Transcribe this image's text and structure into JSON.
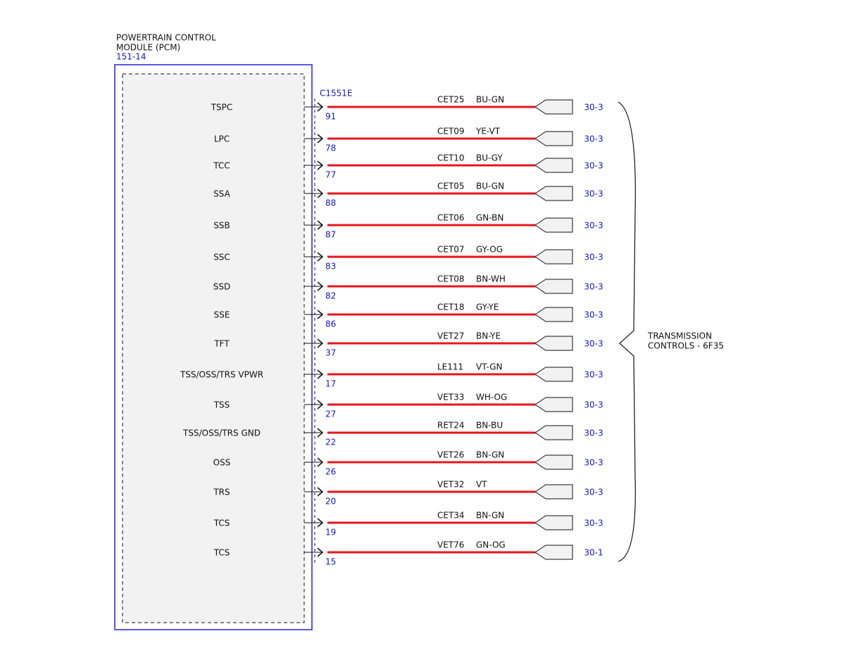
{
  "module": {
    "title_lines": [
      "POWERTRAIN CONTROL",
      "MODULE (PCM)"
    ],
    "ref": "151-14",
    "connector": "C1551E"
  },
  "rows": [
    {
      "signal": "TSPC",
      "pin": "91",
      "circuit": "CET25",
      "color": "BU-GN",
      "ref": "30-3"
    },
    {
      "signal": "LPC",
      "pin": "78",
      "circuit": "CET09",
      "color": "YE-VT",
      "ref": "30-3"
    },
    {
      "signal": "TCC",
      "pin": "77",
      "circuit": "CET10",
      "color": "BU-GY",
      "ref": "30-3"
    },
    {
      "signal": "SSA",
      "pin": "88",
      "circuit": "CET05",
      "color": "BU-GN",
      "ref": "30-3"
    },
    {
      "signal": "SSB",
      "pin": "87",
      "circuit": "CET06",
      "color": "GN-BN",
      "ref": "30-3"
    },
    {
      "signal": "SSC",
      "pin": "83",
      "circuit": "CET07",
      "color": "GY-OG",
      "ref": "30-3"
    },
    {
      "signal": "SSD",
      "pin": "82",
      "circuit": "CET08",
      "color": "BN-WH",
      "ref": "30-3"
    },
    {
      "signal": "SSE",
      "pin": "86",
      "circuit": "CET18",
      "color": "GY-YE",
      "ref": "30-3"
    },
    {
      "signal": "TFT",
      "pin": "37",
      "circuit": "VET27",
      "color": "BN-YE",
      "ref": "30-3"
    },
    {
      "signal": "TSS/OSS/TRS VPWR",
      "pin": "17",
      "circuit": "LE111",
      "color": "VT-GN",
      "ref": "30-3"
    },
    {
      "signal": "TSS",
      "pin": "27",
      "circuit": "VET33",
      "color": "WH-OG",
      "ref": "30-3"
    },
    {
      "signal": "TSS/OSS/TRS GND",
      "pin": "22",
      "circuit": "RET24",
      "color": "BN-BU",
      "ref": "30-3"
    },
    {
      "signal": "OSS",
      "pin": "26",
      "circuit": "VET26",
      "color": "BN-GN",
      "ref": "30-3"
    },
    {
      "signal": "TRS",
      "pin": "20",
      "circuit": "VET32",
      "color": "VT",
      "ref": "30-3"
    },
    {
      "signal": "TCS",
      "pin": "19",
      "circuit": "CET34",
      "color": "BN-GN",
      "ref": "30-3"
    },
    {
      "signal": "TCS",
      "pin": "15",
      "circuit": "VET76",
      "color": "GN-OG",
      "ref": "30-1"
    }
  ],
  "component": {
    "label_lines": [
      "TRANSMISSION",
      "CONTROLS - 6F35"
    ]
  }
}
